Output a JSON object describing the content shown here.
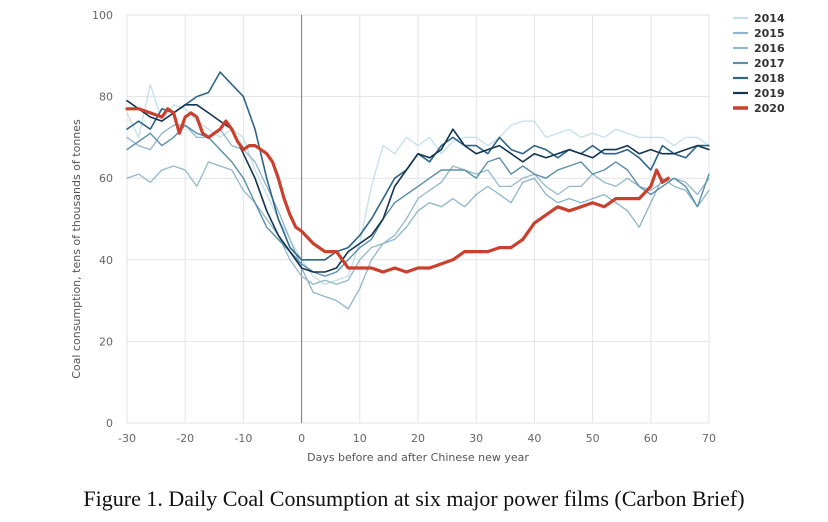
{
  "caption": "Figure 1. Daily Coal Consumption at six major power films (Carbon Brief)",
  "chart_data": {
    "type": "line",
    "xlabel": "Days before and after Chinese new year",
    "ylabel": "Coal consumption, tens of thousands of tonnes",
    "xlim": [
      -30,
      70
    ],
    "ylim": [
      0,
      100
    ],
    "x_ticks": [
      -30,
      -20,
      -10,
      0,
      10,
      20,
      30,
      40,
      50,
      60,
      70
    ],
    "y_ticks": [
      0,
      20,
      40,
      60,
      80,
      100
    ],
    "grid": "x and y",
    "legend": "right",
    "series": [
      {
        "name": "2014",
        "color": "#c4dfec",
        "width": 1.3,
        "x": [
          -30,
          -28,
          -26,
          -24,
          -22,
          -20,
          -18,
          -16,
          -14,
          -12,
          -10,
          -8,
          -6,
          -4,
          -2,
          0,
          2,
          4,
          6,
          8,
          10,
          12,
          14,
          16,
          18,
          20,
          22,
          24,
          26,
          28,
          30,
          32,
          34,
          36,
          38,
          40,
          42,
          44,
          46,
          48,
          50,
          52,
          54,
          56,
          58,
          60,
          62,
          64,
          66,
          68,
          70
        ],
        "y": [
          76,
          70,
          83,
          74,
          78,
          77,
          74,
          72,
          70,
          72,
          70,
          62,
          56,
          50,
          45,
          40,
          36,
          34,
          35,
          36,
          44,
          58,
          68,
          66,
          70,
          68,
          70,
          66,
          69,
          70,
          70,
          68,
          70,
          73,
          74,
          74,
          70,
          71,
          72,
          70,
          71,
          70,
          72,
          71,
          70,
          70,
          70,
          68,
          70,
          70,
          68
        ]
      },
      {
        "name": "2015",
        "color": "#8fb4cb",
        "width": 1.3,
        "x": [
          -30,
          -28,
          -26,
          -24,
          -22,
          -20,
          -18,
          -16,
          -14,
          -12,
          -10,
          -8,
          -6,
          -4,
          -2,
          0,
          2,
          4,
          6,
          8,
          10,
          12,
          14,
          16,
          18,
          20,
          22,
          24,
          26,
          28,
          30,
          32,
          34,
          36,
          38,
          40,
          42,
          44,
          46,
          48,
          50,
          52,
          54,
          56,
          58,
          60,
          62,
          64,
          66,
          68,
          70
        ],
        "y": [
          70,
          68,
          67,
          71,
          73,
          73,
          70,
          70,
          72,
          68,
          67,
          64,
          58,
          52,
          45,
          38,
          32,
          31,
          30,
          28,
          33,
          40,
          44,
          45,
          48,
          52,
          54,
          53,
          55,
          53,
          56,
          58,
          56,
          54,
          59,
          60,
          56,
          54,
          55,
          54,
          55,
          56,
          54,
          52,
          48,
          54,
          60,
          58,
          57,
          53,
          57
        ]
      },
      {
        "name": "2016",
        "color": "#93b8ca",
        "width": 1.3,
        "x": [
          -30,
          -28,
          -26,
          -24,
          -22,
          -20,
          -18,
          -16,
          -14,
          -12,
          -10,
          -8,
          -6,
          -4,
          -2,
          0,
          2,
          4,
          6,
          8,
          10,
          12,
          14,
          16,
          18,
          20,
          22,
          24,
          26,
          28,
          30,
          32,
          34,
          36,
          38,
          40,
          42,
          44,
          46,
          48,
          50,
          52,
          54,
          56,
          58,
          60,
          62,
          64,
          66,
          68,
          70
        ],
        "y": [
          60,
          61,
          59,
          62,
          63,
          62,
          58,
          64,
          63,
          62,
          57,
          54,
          50,
          46,
          40,
          36,
          34,
          35,
          34,
          35,
          40,
          43,
          44,
          46,
          50,
          55,
          57,
          59,
          63,
          62,
          61,
          62,
          58,
          58,
          60,
          61,
          58,
          56,
          58,
          58,
          61,
          59,
          58,
          60,
          58,
          57,
          59,
          60,
          59,
          56,
          60
        ]
      },
      {
        "name": "2017",
        "color": "#5b8fa8",
        "width": 1.4,
        "x": [
          -30,
          -28,
          -26,
          -24,
          -22,
          -20,
          -18,
          -16,
          -14,
          -12,
          -10,
          -8,
          -6,
          -4,
          -2,
          0,
          2,
          4,
          6,
          8,
          10,
          12,
          14,
          16,
          18,
          20,
          22,
          24,
          26,
          28,
          30,
          32,
          34,
          36,
          38,
          40,
          42,
          44,
          46,
          48,
          50,
          52,
          54,
          56,
          58,
          60,
          62,
          64,
          66,
          68,
          70
        ],
        "y": [
          67,
          69,
          71,
          68,
          70,
          73,
          71,
          70,
          67,
          64,
          60,
          54,
          48,
          45,
          42,
          39,
          37,
          36,
          37,
          40,
          43,
          45,
          50,
          54,
          56,
          58,
          60,
          62,
          62,
          62,
          60,
          64,
          65,
          61,
          63,
          61,
          60,
          62,
          63,
          64,
          61,
          62,
          64,
          62,
          58,
          56,
          58,
          60,
          58,
          53,
          61
        ]
      },
      {
        "name": "2018",
        "color": "#2e6486",
        "width": 1.6,
        "x": [
          -30,
          -28,
          -26,
          -24,
          -22,
          -20,
          -18,
          -16,
          -14,
          -12,
          -10,
          -8,
          -6,
          -4,
          -2,
          0,
          2,
          4,
          6,
          8,
          10,
          12,
          14,
          16,
          18,
          20,
          22,
          24,
          26,
          28,
          30,
          32,
          34,
          36,
          38,
          40,
          42,
          44,
          46,
          48,
          50,
          52,
          54,
          56,
          58,
          60,
          62,
          64,
          66,
          68,
          70
        ],
        "y": [
          72,
          74,
          72,
          77,
          76,
          78,
          80,
          81,
          86,
          83,
          80,
          72,
          60,
          50,
          43,
          40,
          40,
          40,
          42,
          43,
          46,
          50,
          55,
          60,
          62,
          66,
          64,
          68,
          70,
          68,
          68,
          66,
          70,
          67,
          66,
          68,
          67,
          65,
          67,
          66,
          68,
          66,
          66,
          67,
          65,
          62,
          68,
          66,
          65,
          68,
          68
        ]
      },
      {
        "name": "2019",
        "color": "#12344f",
        "width": 1.6,
        "x": [
          -30,
          -28,
          -26,
          -24,
          -22,
          -20,
          -18,
          -16,
          -14,
          -12,
          -10,
          -8,
          -6,
          -4,
          -2,
          0,
          2,
          4,
          6,
          8,
          10,
          12,
          14,
          16,
          18,
          20,
          22,
          24,
          26,
          28,
          30,
          32,
          34,
          36,
          38,
          40,
          42,
          44,
          46,
          48,
          50,
          52,
          54,
          56,
          58,
          60,
          62,
          64,
          66,
          68,
          70
        ],
        "y": [
          79,
          77,
          75,
          74,
          76,
          78,
          78,
          76,
          74,
          72,
          66,
          60,
          52,
          46,
          42,
          38,
          37,
          37,
          38,
          42,
          44,
          46,
          50,
          58,
          62,
          66,
          65,
          67,
          72,
          68,
          66,
          67,
          68,
          66,
          64,
          66,
          65,
          66,
          67,
          66,
          65,
          67,
          67,
          68,
          66,
          67,
          66,
          66,
          67,
          68,
          67
        ]
      },
      {
        "name": "2020",
        "color": "#c9412e",
        "width": 3.2,
        "x": [
          -30,
          -28,
          -26,
          -24,
          -23,
          -22,
          -21,
          -20,
          -19,
          -18,
          -17,
          -16,
          -15,
          -14,
          -13,
          -12,
          -11,
          -10,
          -9,
          -8,
          -7,
          -6,
          -5,
          -4,
          -3,
          -2,
          -1,
          0,
          2,
          4,
          6,
          8,
          10,
          12,
          14,
          16,
          18,
          20,
          22,
          24,
          26,
          28,
          30,
          32,
          34,
          36,
          38,
          40,
          42,
          44,
          46,
          48,
          50,
          52,
          54,
          56,
          58,
          60,
          61,
          62,
          63
        ],
        "y": [
          77,
          77,
          76,
          75,
          77,
          76,
          71,
          75,
          76,
          75,
          71,
          70,
          71,
          72,
          74,
          72,
          69,
          67,
          68,
          68,
          67,
          66,
          64,
          60,
          55,
          51,
          48,
          47,
          44,
          42,
          42,
          38,
          38,
          38,
          37,
          38,
          37,
          38,
          38,
          39,
          40,
          42,
          42,
          42,
          43,
          43,
          45,
          49,
          51,
          53,
          52,
          53,
          54,
          53,
          55,
          55,
          55,
          58,
          62,
          59,
          60
        ]
      }
    ]
  }
}
